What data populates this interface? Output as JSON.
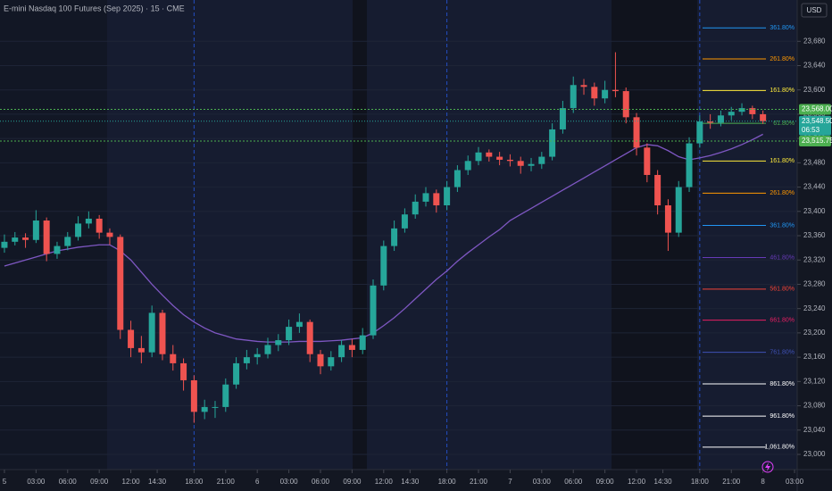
{
  "chart_data": {
    "type": "candlestick",
    "title": "E-mini Nasdaq 100 Futures (Sep 2025) · 15 · CME",
    "currency": "USD",
    "up_color": "#26a69a",
    "down_color": "#ef5350",
    "x": [
      0,
      1,
      2,
      3,
      4,
      5,
      6,
      7,
      8,
      9,
      10,
      11,
      12,
      13,
      14,
      15,
      16,
      17,
      18,
      19,
      20,
      21,
      22,
      23,
      24,
      25,
      26,
      27,
      28,
      29,
      30,
      31,
      32,
      33,
      34,
      35,
      36,
      37,
      38,
      39,
      40,
      41,
      42,
      43,
      44,
      45,
      46,
      47,
      48,
      49,
      50,
      51,
      52,
      53,
      54,
      55,
      56,
      57,
      58,
      59,
      60,
      61,
      62,
      63,
      64,
      65,
      66,
      67,
      68,
      69,
      70,
      71,
      72
    ],
    "ohlc": [
      [
        23340,
        23362,
        23332,
        23350
      ],
      [
        23350,
        23366,
        23344,
        23357
      ],
      [
        23357,
        23364,
        23340,
        23353
      ],
      [
        23353,
        23402,
        23348,
        23385
      ],
      [
        23385,
        23390,
        23318,
        23330
      ],
      [
        23330,
        23350,
        23322,
        23343
      ],
      [
        23343,
        23366,
        23336,
        23358
      ],
      [
        23358,
        23392,
        23352,
        23380
      ],
      [
        23380,
        23400,
        23372,
        23388
      ],
      [
        23388,
        23394,
        23355,
        23365
      ],
      [
        23365,
        23372,
        23345,
        23358
      ],
      [
        23358,
        23362,
        23190,
        23205
      ],
      [
        23205,
        23220,
        23160,
        23175
      ],
      [
        23175,
        23195,
        23150,
        23168
      ],
      [
        23168,
        23245,
        23160,
        23233
      ],
      [
        23233,
        23238,
        23155,
        23165
      ],
      [
        23165,
        23180,
        23138,
        23150
      ],
      [
        23150,
        23158,
        23105,
        23122
      ],
      [
        23122,
        23130,
        23052,
        23070
      ],
      [
        23070,
        23090,
        23058,
        23078
      ],
      [
        23078,
        23088,
        23060,
        23078
      ],
      [
        23078,
        23125,
        23070,
        23115
      ],
      [
        23115,
        23160,
        23108,
        23150
      ],
      [
        23150,
        23172,
        23140,
        23160
      ],
      [
        23160,
        23175,
        23148,
        23165
      ],
      [
        23165,
        23192,
        23158,
        23180
      ],
      [
        23180,
        23198,
        23170,
        23188
      ],
      [
        23188,
        23222,
        23180,
        23210
      ],
      [
        23210,
        23232,
        23200,
        23218
      ],
      [
        23218,
        23222,
        23152,
        23165
      ],
      [
        23165,
        23172,
        23132,
        23145
      ],
      [
        23145,
        23170,
        23138,
        23160
      ],
      [
        23160,
        23188,
        23152,
        23180
      ],
      [
        23180,
        23190,
        23160,
        23172
      ],
      [
        23172,
        23208,
        23165,
        23196
      ],
      [
        23196,
        23288,
        23190,
        23278
      ],
      [
        23278,
        23352,
        23270,
        23343
      ],
      [
        23343,
        23385,
        23335,
        23372
      ],
      [
        23372,
        23405,
        23365,
        23395
      ],
      [
        23395,
        23428,
        23388,
        23416
      ],
      [
        23416,
        23440,
        23408,
        23430
      ],
      [
        23430,
        23436,
        23398,
        23410
      ],
      [
        23410,
        23450,
        23402,
        23440
      ],
      [
        23440,
        23476,
        23432,
        23468
      ],
      [
        23468,
        23492,
        23460,
        23483
      ],
      [
        23483,
        23506,
        23476,
        23497
      ],
      [
        23497,
        23502,
        23482,
        23490
      ],
      [
        23490,
        23498,
        23476,
        23485
      ],
      [
        23485,
        23494,
        23474,
        23483
      ],
      [
        23483,
        23490,
        23462,
        23475
      ],
      [
        23475,
        23488,
        23466,
        23478
      ],
      [
        23478,
        23498,
        23470,
        23490
      ],
      [
        23490,
        23545,
        23484,
        23535
      ],
      [
        23535,
        23582,
        23528,
        23570
      ],
      [
        23570,
        23622,
        23562,
        23608
      ],
      [
        23608,
        23618,
        23592,
        23605
      ],
      [
        23605,
        23612,
        23574,
        23586
      ],
      [
        23586,
        23615,
        23578,
        23600
      ],
      [
        23600,
        23662,
        23588,
        23598
      ],
      [
        23598,
        23604,
        23545,
        23555
      ],
      [
        23555,
        23562,
        23492,
        23505
      ],
      [
        23505,
        23512,
        23448,
        23460
      ],
      [
        23460,
        23468,
        23395,
        23410
      ],
      [
        23410,
        23420,
        23335,
        23365
      ],
      [
        23365,
        23450,
        23358,
        23440
      ],
      [
        23440,
        23522,
        23432,
        23512
      ],
      [
        23512,
        23558,
        23505,
        23548
      ],
      [
        23548,
        23560,
        23536,
        23546
      ],
      [
        23546,
        23566,
        23540,
        23558
      ],
      [
        23558,
        23572,
        23550,
        23564
      ],
      [
        23564,
        23578,
        23558,
        23570
      ],
      [
        23570,
        23574,
        23552,
        23560
      ],
      [
        23560,
        23566,
        23544,
        23548.5
      ]
    ],
    "last_price_label": "23,548.50",
    "countdown": "06:53",
    "moving_average": {
      "color": "#7e57c2",
      "values": [
        23310,
        23315,
        23320,
        23325,
        23330,
        23335,
        23338,
        23341,
        23343,
        23345,
        23345,
        23335,
        23320,
        23300,
        23280,
        23262,
        23245,
        23230,
        23218,
        23208,
        23200,
        23195,
        23190,
        23188,
        23186,
        23185,
        23185,
        23185,
        23186,
        23186,
        23186,
        23187,
        23188,
        23190,
        23192,
        23200,
        23212,
        23225,
        23240,
        23256,
        23272,
        23288,
        23302,
        23318,
        23332,
        23345,
        23358,
        23370,
        23385,
        23395,
        23405,
        23415,
        23425,
        23435,
        23445,
        23455,
        23465,
        23475,
        23485,
        23495,
        23505,
        23510,
        23508,
        23500,
        23490,
        23485,
        23488,
        23492,
        23497,
        23503,
        23510,
        23518,
        23527
      ]
    },
    "price_lines": [
      {
        "value": 23568,
        "label": "23,568.00",
        "color": "#4caf50"
      },
      {
        "value": 23515.75,
        "label": "23,515.75",
        "color": "#4caf50"
      }
    ],
    "fib_levels": [
      {
        "label": "361.80%",
        "value": 23702,
        "color": "#2196f3"
      },
      {
        "label": "261.80%",
        "value": 23651,
        "color": "#ff9800"
      },
      {
        "label": "161.80%",
        "value": 23599,
        "color": "#ffeb3b"
      },
      {
        "label": "61.80%",
        "value": 23545,
        "color": "#4caf50"
      },
      {
        "label": "161.80%",
        "value": 23483,
        "color": "#ffeb3b"
      },
      {
        "label": "261.80%",
        "value": 23430,
        "color": "#ff9800"
      },
      {
        "label": "361.80%",
        "value": 23377,
        "color": "#2196f3"
      },
      {
        "label": "461.80%",
        "value": 23324,
        "color": "#673ab7"
      },
      {
        "label": "561.80%",
        "value": 23272,
        "color": "#f44336"
      },
      {
        "label": "661.80%",
        "value": 23221,
        "color": "#e91e63"
      },
      {
        "label": "761.80%",
        "value": 23168,
        "color": "#3f51b5"
      },
      {
        "label": "861.80%",
        "value": 23116,
        "color": "#ffffff"
      },
      {
        "label": "961.80%",
        "value": 23063,
        "color": "#ffffff"
      },
      {
        "label": "1,061.80%",
        "value": 23012,
        "color": "#ffffff"
      }
    ],
    "session_breaks": [
      18,
      42,
      66
    ],
    "xlim": [
      -0.42,
      75.25
    ],
    "xticks": [
      {
        "value": 0,
        "label": "5"
      },
      {
        "value": 3,
        "label": "03:00"
      },
      {
        "value": 6,
        "label": "06:00"
      },
      {
        "value": 9,
        "label": "09:00"
      },
      {
        "value": 12,
        "label": "12:00"
      },
      {
        "value": 14.5,
        "label": "14:30"
      },
      {
        "value": 18,
        "label": "18:00"
      },
      {
        "value": 21,
        "label": "21:00"
      },
      {
        "value": 24,
        "label": "6"
      },
      {
        "value": 27,
        "label": "03:00"
      },
      {
        "value": 30,
        "label": "06:00"
      },
      {
        "value": 33,
        "label": "09:00"
      },
      {
        "value": 36,
        "label": "12:00"
      },
      {
        "value": 38.5,
        "label": "14:30"
      },
      {
        "value": 42,
        "label": "18:00"
      },
      {
        "value": 45,
        "label": "21:00"
      },
      {
        "value": 48,
        "label": "7"
      },
      {
        "value": 51,
        "label": "03:00"
      },
      {
        "value": 54,
        "label": "06:00"
      },
      {
        "value": 57,
        "label": "09:00"
      },
      {
        "value": 60,
        "label": "12:00"
      },
      {
        "value": 62.5,
        "label": "14:30"
      },
      {
        "value": 66,
        "label": "18:00"
      },
      {
        "value": 69,
        "label": "21:00"
      },
      {
        "value": 72,
        "label": "8"
      },
      {
        "value": 75,
        "label": "03:00"
      }
    ],
    "ylim": [
      22975,
      23748
    ],
    "yticks": [
      {
        "value": 23000,
        "label": "23,000"
      },
      {
        "value": 23040,
        "label": "23,040"
      },
      {
        "value": 23080,
        "label": "23,080"
      },
      {
        "value": 23120,
        "label": "23,120"
      },
      {
        "value": 23160,
        "label": "23,160"
      },
      {
        "value": 23200,
        "label": "23,200"
      },
      {
        "value": 23240,
        "label": "23,240"
      },
      {
        "value": 23280,
        "label": "23,280"
      },
      {
        "value": 23320,
        "label": "23,320"
      },
      {
        "value": 23360,
        "label": "23,360"
      },
      {
        "value": 23400,
        "label": "23,400"
      },
      {
        "value": 23440,
        "label": "23,440"
      },
      {
        "value": 23480,
        "label": "23,480"
      },
      {
        "value": 23520,
        "label": "23,520"
      },
      {
        "value": 23560,
        "label": "23,560"
      },
      {
        "value": 23600,
        "label": "23,600"
      },
      {
        "value": 23640,
        "label": "23,640"
      },
      {
        "value": 23680,
        "label": "23,680"
      }
    ]
  }
}
